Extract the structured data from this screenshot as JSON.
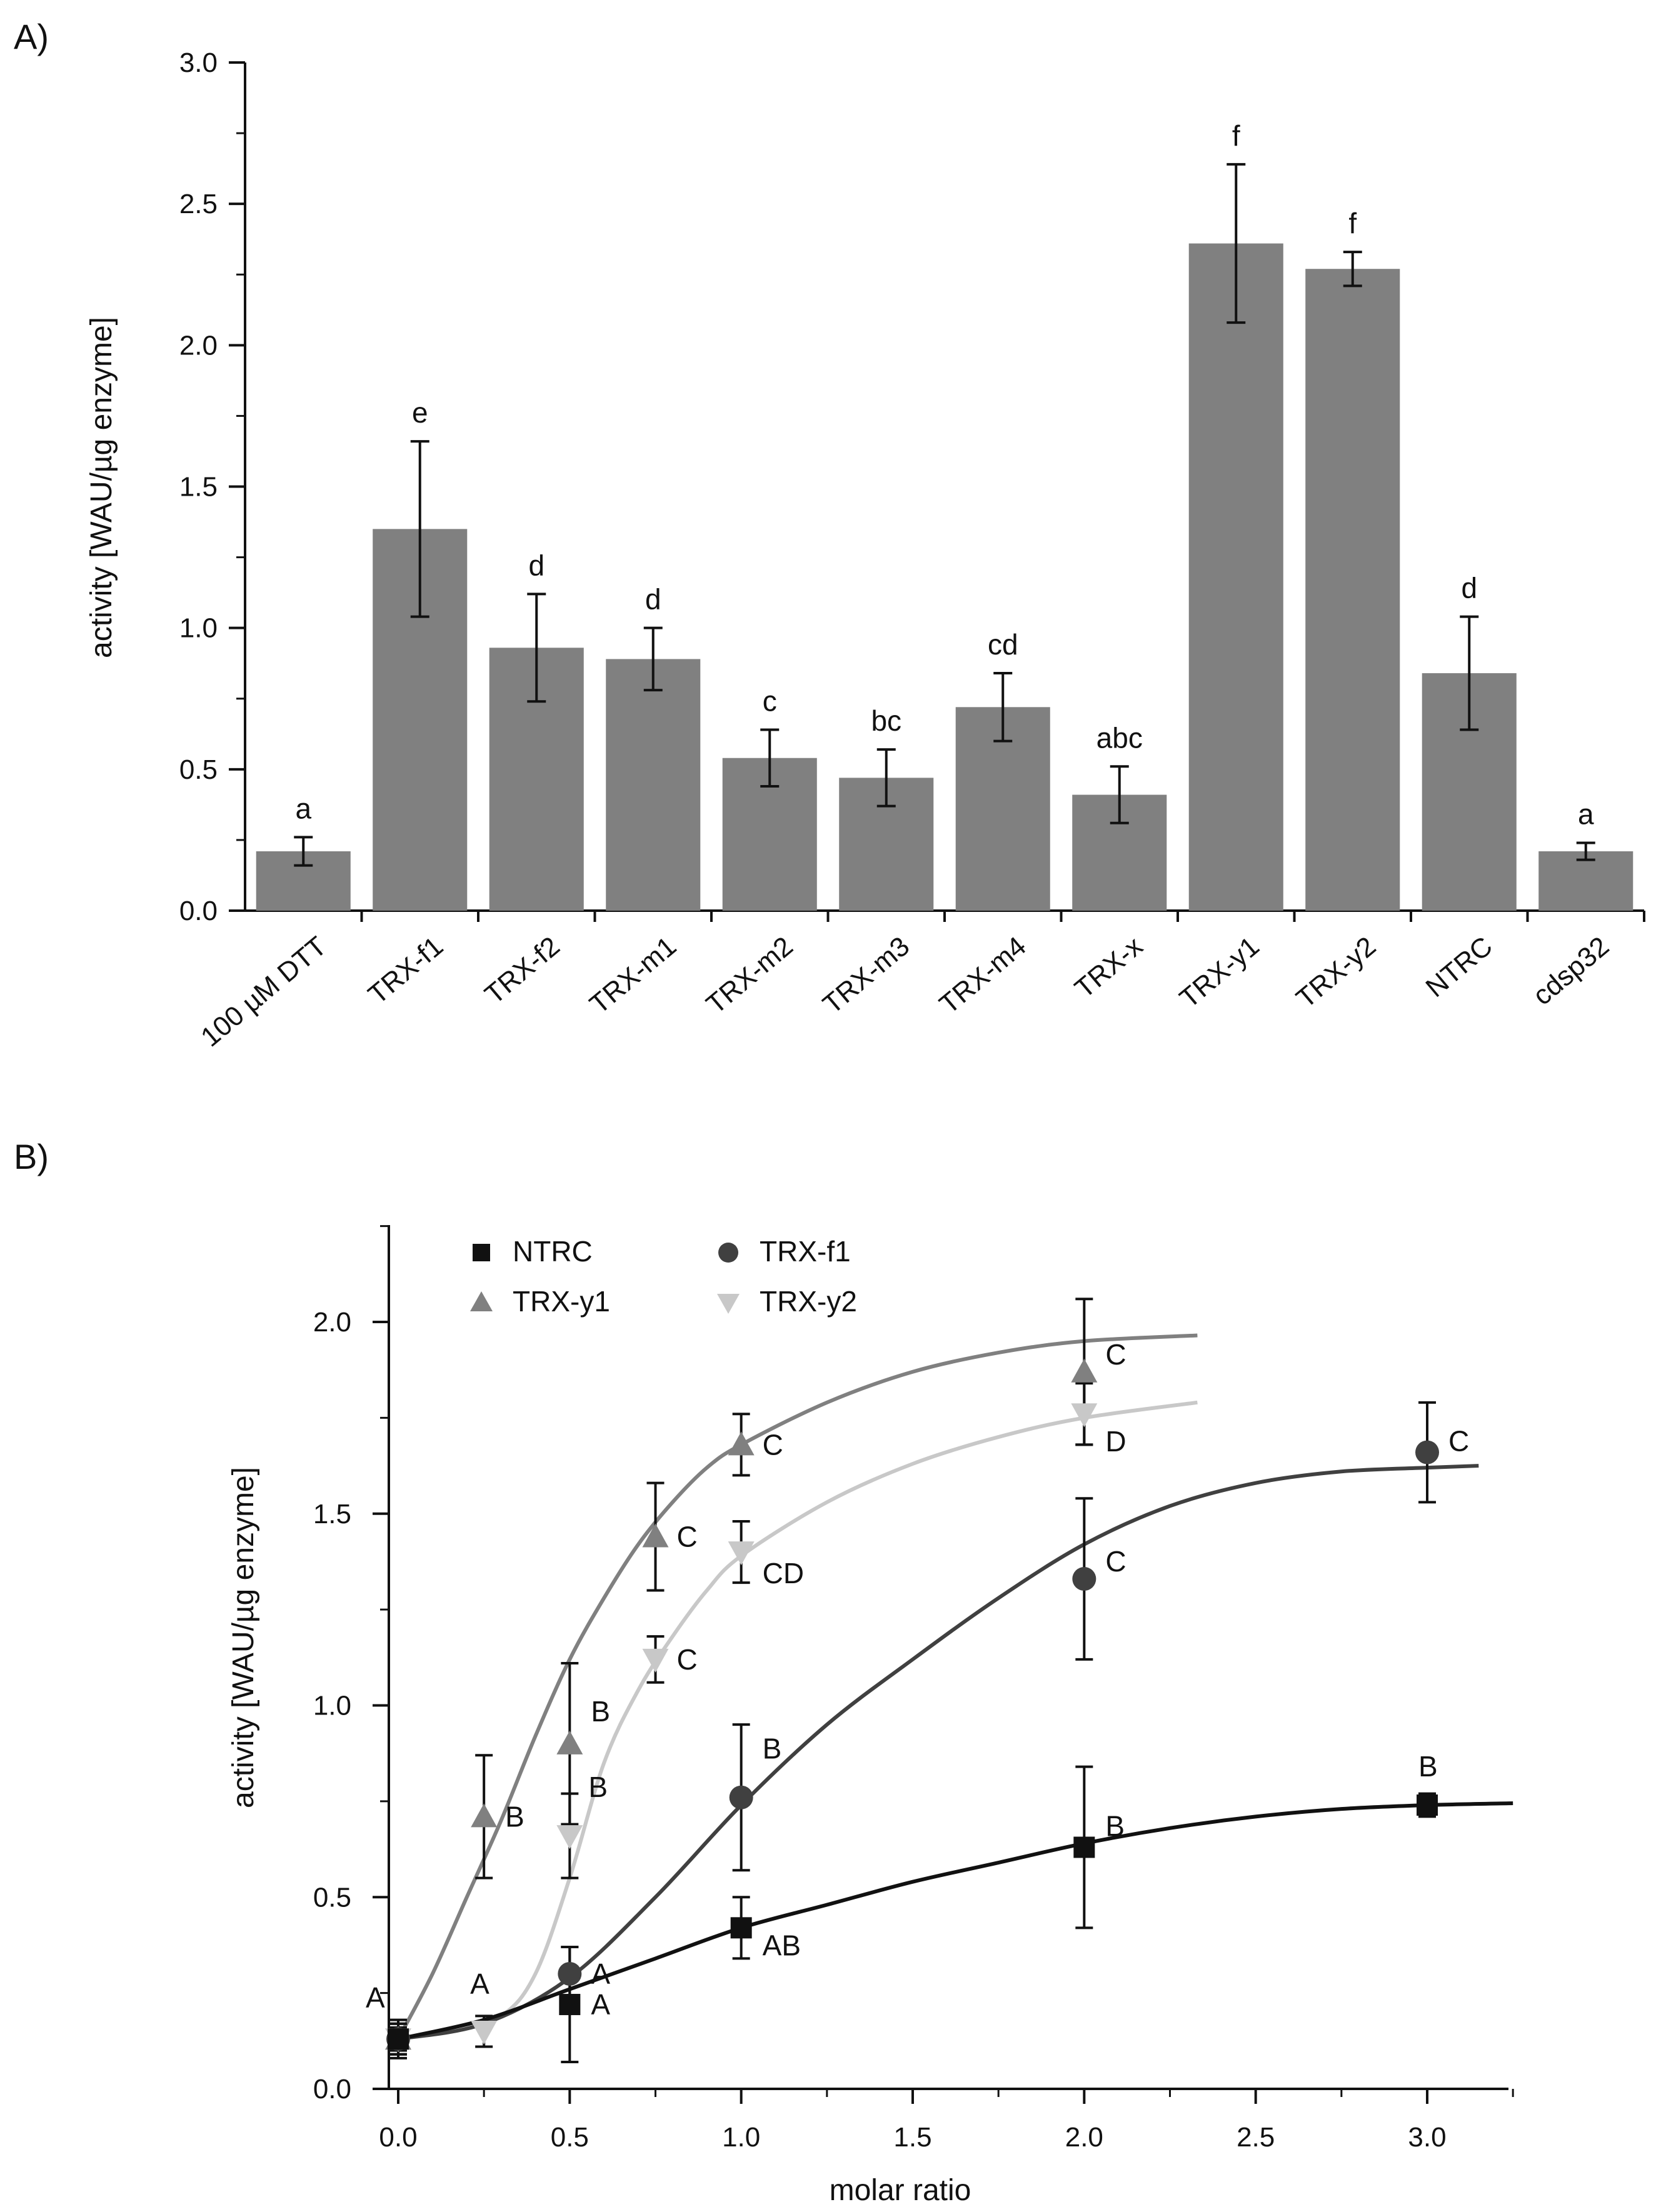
{
  "panels": {
    "a": {
      "label": "A)"
    },
    "b": {
      "label": "B)"
    }
  },
  "chart_data": [
    {
      "type": "bar",
      "title": "",
      "xlabel": "",
      "ylabel": "activity [WAU/µg enzyme]",
      "ylim": [
        0,
        3.0
      ],
      "yticks": [
        "0.0",
        "0.5",
        "1.0",
        "1.5",
        "2.0",
        "2.5",
        "3.0"
      ],
      "grid": false,
      "bar_color": "#808080",
      "categories": [
        "100 µM DTT",
        "TRX-f1",
        "TRX-f2",
        "TRX-m1",
        "TRX-m2",
        "TRX-m3",
        "TRX-m4",
        "TRX-x",
        "TRX-y1",
        "TRX-y2",
        "NTRC",
        "cdsp32"
      ],
      "values": [
        0.21,
        1.35,
        0.93,
        0.89,
        0.54,
        0.47,
        0.72,
        0.41,
        2.36,
        2.27,
        0.84,
        0.21
      ],
      "errors": [
        0.05,
        0.31,
        0.19,
        0.11,
        0.1,
        0.1,
        0.12,
        0.1,
        0.28,
        0.06,
        0.2,
        0.03
      ],
      "annotations": [
        "a",
        "e",
        "d",
        "d",
        "c",
        "bc",
        "cd",
        "abc",
        "f",
        "f",
        "d",
        "a"
      ]
    },
    {
      "type": "scatter",
      "title": "",
      "xlabel": "molar ratio",
      "ylabel": "activity [WAU/µg enzyme]",
      "xlim": [
        0,
        3.25
      ],
      "ylim": [
        0,
        2.25
      ],
      "xticks": [
        "0.0",
        "0.5",
        "1.0",
        "1.5",
        "2.0",
        "2.5",
        "3.0"
      ],
      "yticks": [
        "0.0",
        "0.5",
        "1.0",
        "1.5",
        "2.0"
      ],
      "grid": false,
      "legend_position": "top-left",
      "series": [
        {
          "name": "NTRC",
          "marker": "square",
          "color": "#111111",
          "points": [
            {
              "x": 0.0,
              "y": 0.13,
              "err": 0.04,
              "label": ""
            },
            {
              "x": 0.5,
              "y": 0.22,
              "err": 0.15,
              "label": "A"
            },
            {
              "x": 1.0,
              "y": 0.42,
              "err": 0.08,
              "label": "AB"
            },
            {
              "x": 2.0,
              "y": 0.63,
              "err": 0.21,
              "label": "B"
            },
            {
              "x": 3.0,
              "y": 0.74,
              "err": 0.03,
              "label": "B"
            }
          ],
          "curve": [
            [
              0,
              0.13
            ],
            [
              0.25,
              0.18
            ],
            [
              0.5,
              0.26
            ],
            [
              0.75,
              0.34
            ],
            [
              1.0,
              0.42
            ],
            [
              1.25,
              0.48
            ],
            [
              1.5,
              0.54
            ],
            [
              1.75,
              0.59
            ],
            [
              2.0,
              0.64
            ],
            [
              2.25,
              0.68
            ],
            [
              2.5,
              0.71
            ],
            [
              2.75,
              0.73
            ],
            [
              3.0,
              0.74
            ],
            [
              3.25,
              0.745
            ]
          ]
        },
        {
          "name": "TRX-f1",
          "marker": "circle",
          "color": "#404040",
          "points": [
            {
              "x": 0.0,
              "y": 0.13,
              "err": 0.04,
              "label": ""
            },
            {
              "x": 0.5,
              "y": 0.3,
              "err": 0.07,
              "label": "A"
            },
            {
              "x": 1.0,
              "y": 0.76,
              "err": 0.19,
              "label": "B"
            },
            {
              "x": 2.0,
              "y": 1.33,
              "err": 0.21,
              "label": "C"
            },
            {
              "x": 3.0,
              "y": 1.66,
              "err": 0.13,
              "label": "C"
            }
          ],
          "curve": [
            [
              0,
              0.13
            ],
            [
              0.25,
              0.17
            ],
            [
              0.5,
              0.29
            ],
            [
              0.75,
              0.5
            ],
            [
              1.0,
              0.74
            ],
            [
              1.25,
              0.95
            ],
            [
              1.5,
              1.12
            ],
            [
              1.75,
              1.28
            ],
            [
              2.0,
              1.42
            ],
            [
              2.25,
              1.52
            ],
            [
              2.5,
              1.58
            ],
            [
              2.75,
              1.61
            ],
            [
              3.0,
              1.62
            ],
            [
              3.15,
              1.625
            ]
          ]
        },
        {
          "name": "TRX-y1",
          "marker": "triangle-up",
          "color": "#808080",
          "points": [
            {
              "x": 0.0,
              "y": 0.13,
              "err": 0.05,
              "label": "A"
            },
            {
              "x": 0.25,
              "y": 0.71,
              "err": 0.16,
              "label": "B"
            },
            {
              "x": 0.5,
              "y": 0.9,
              "err": 0.21,
              "label": "B"
            },
            {
              "x": 0.75,
              "y": 1.44,
              "err": 0.14,
              "label": "C"
            },
            {
              "x": 1.0,
              "y": 1.68,
              "err": 0.08,
              "label": "C"
            },
            {
              "x": 2.0,
              "y": 1.87,
              "err": 0.19,
              "label": "C"
            }
          ],
          "curve": [
            [
              0,
              0.13
            ],
            [
              0.1,
              0.3
            ],
            [
              0.2,
              0.5
            ],
            [
              0.3,
              0.7
            ],
            [
              0.4,
              0.92
            ],
            [
              0.5,
              1.12
            ],
            [
              0.6,
              1.28
            ],
            [
              0.7,
              1.42
            ],
            [
              0.8,
              1.53
            ],
            [
              0.9,
              1.62
            ],
            [
              1.0,
              1.68
            ],
            [
              1.25,
              1.79
            ],
            [
              1.5,
              1.87
            ],
            [
              1.75,
              1.92
            ],
            [
              2.0,
              1.95
            ],
            [
              2.33,
              1.965
            ]
          ]
        },
        {
          "name": "TRX-y2",
          "marker": "triangle-down",
          "color": "#c8c8c8",
          "points": [
            {
              "x": 0.0,
              "y": 0.13,
              "err": 0.03,
              "label": ""
            },
            {
              "x": 0.25,
              "y": 0.15,
              "err": 0.04,
              "label": "A"
            },
            {
              "x": 0.5,
              "y": 0.66,
              "err": 0.11,
              "label": "B"
            },
            {
              "x": 0.75,
              "y": 1.12,
              "err": 0.06,
              "label": "C"
            },
            {
              "x": 1.0,
              "y": 1.4,
              "err": 0.08,
              "label": "CD"
            },
            {
              "x": 2.0,
              "y": 1.76,
              "err": 0.08,
              "label": "D"
            }
          ],
          "curve": [
            [
              0,
              0.13
            ],
            [
              0.15,
              0.15
            ],
            [
              0.3,
              0.19
            ],
            [
              0.4,
              0.3
            ],
            [
              0.5,
              0.55
            ],
            [
              0.6,
              0.85
            ],
            [
              0.7,
              1.04
            ],
            [
              0.8,
              1.18
            ],
            [
              0.9,
              1.3
            ],
            [
              1.0,
              1.39
            ],
            [
              1.25,
              1.53
            ],
            [
              1.5,
              1.63
            ],
            [
              1.75,
              1.7
            ],
            [
              2.0,
              1.75
            ],
            [
              2.33,
              1.79
            ]
          ]
        }
      ]
    }
  ]
}
